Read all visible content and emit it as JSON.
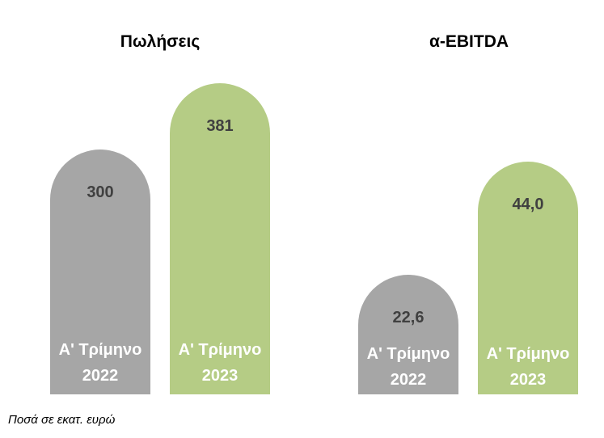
{
  "chart_data": [
    {
      "type": "bar",
      "title": "Πωλήσεις",
      "categories": [
        "Α' Τρίμηνο 2022",
        "Α' Τρίμηνο 2023"
      ],
      "values": [
        300,
        381
      ],
      "value_labels": [
        "300",
        "381"
      ],
      "colors": [
        "#a6a6a6",
        "#b5cc85"
      ]
    },
    {
      "type": "bar",
      "title": "α-EBITDA",
      "categories": [
        "Α' Τρίμηνο 2022",
        "Α' Τρίμηνο 2023"
      ],
      "values": [
        22.6,
        44.0
      ],
      "value_labels": [
        "22,6",
        "44,0"
      ],
      "colors": [
        "#a6a6a6",
        "#b5cc85"
      ]
    }
  ],
  "note": "Ποσά σε εκατ. ευρώ"
}
